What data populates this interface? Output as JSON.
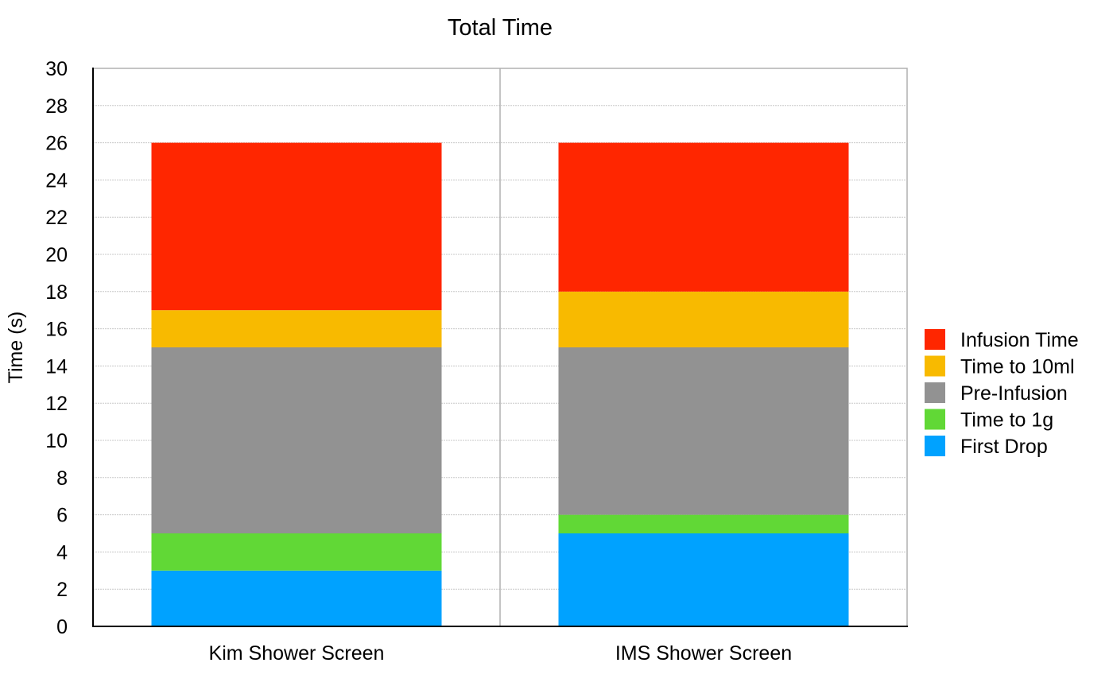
{
  "chart_data": {
    "type": "bar",
    "stacked": true,
    "title": "Total Time",
    "ylabel": "Time (s)",
    "xlabel": "",
    "ylim": [
      0,
      30
    ],
    "yticks": [
      0,
      2,
      4,
      6,
      8,
      10,
      12,
      14,
      16,
      18,
      20,
      22,
      24,
      26,
      28,
      30
    ],
    "grid": true,
    "legend_position": "right",
    "categories": [
      "Kim Shower Screen",
      "IMS Shower Screen"
    ],
    "series": [
      {
        "name": "First Drop",
        "color": "#00a2ff",
        "values": [
          3,
          5
        ]
      },
      {
        "name": "Time to 1g",
        "color": "#61d836",
        "values": [
          2,
          1
        ]
      },
      {
        "name": "Pre-Infusion",
        "color": "#929292",
        "values": [
          10,
          9
        ]
      },
      {
        "name": "Time to 10ml",
        "color": "#f8ba00",
        "values": [
          2,
          3
        ]
      },
      {
        "name": "Infusion Time",
        "color": "#ff2600",
        "values": [
          9,
          8
        ]
      }
    ],
    "legend_order": [
      "Infusion Time",
      "Time to 10ml",
      "Pre-Infusion",
      "Time to 1g",
      "First Drop"
    ]
  }
}
